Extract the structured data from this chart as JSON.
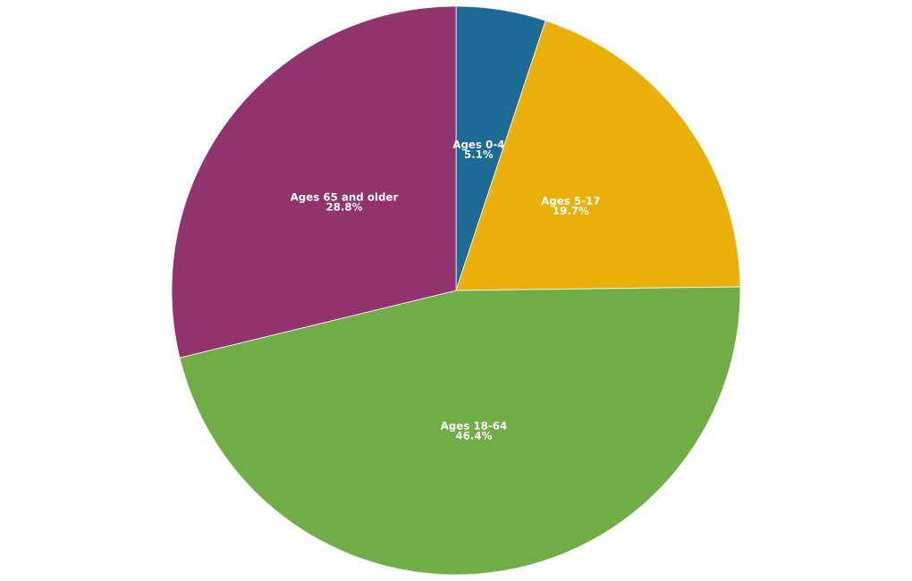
{
  "chart_data": {
    "type": "pie",
    "categories": [
      "Ages 0-4",
      "Ages 5-17",
      "Ages 18-64",
      "Ages 65 and older"
    ],
    "values": [
      5.1,
      19.7,
      46.4,
      28.8
    ],
    "colors": [
      "#1c6a96",
      "#ebaf0a",
      "#70ad47",
      "#91336d"
    ],
    "value_labels": [
      "5.1%",
      "19.7%",
      "46.4%",
      "28.8%"
    ],
    "legend": false
  }
}
